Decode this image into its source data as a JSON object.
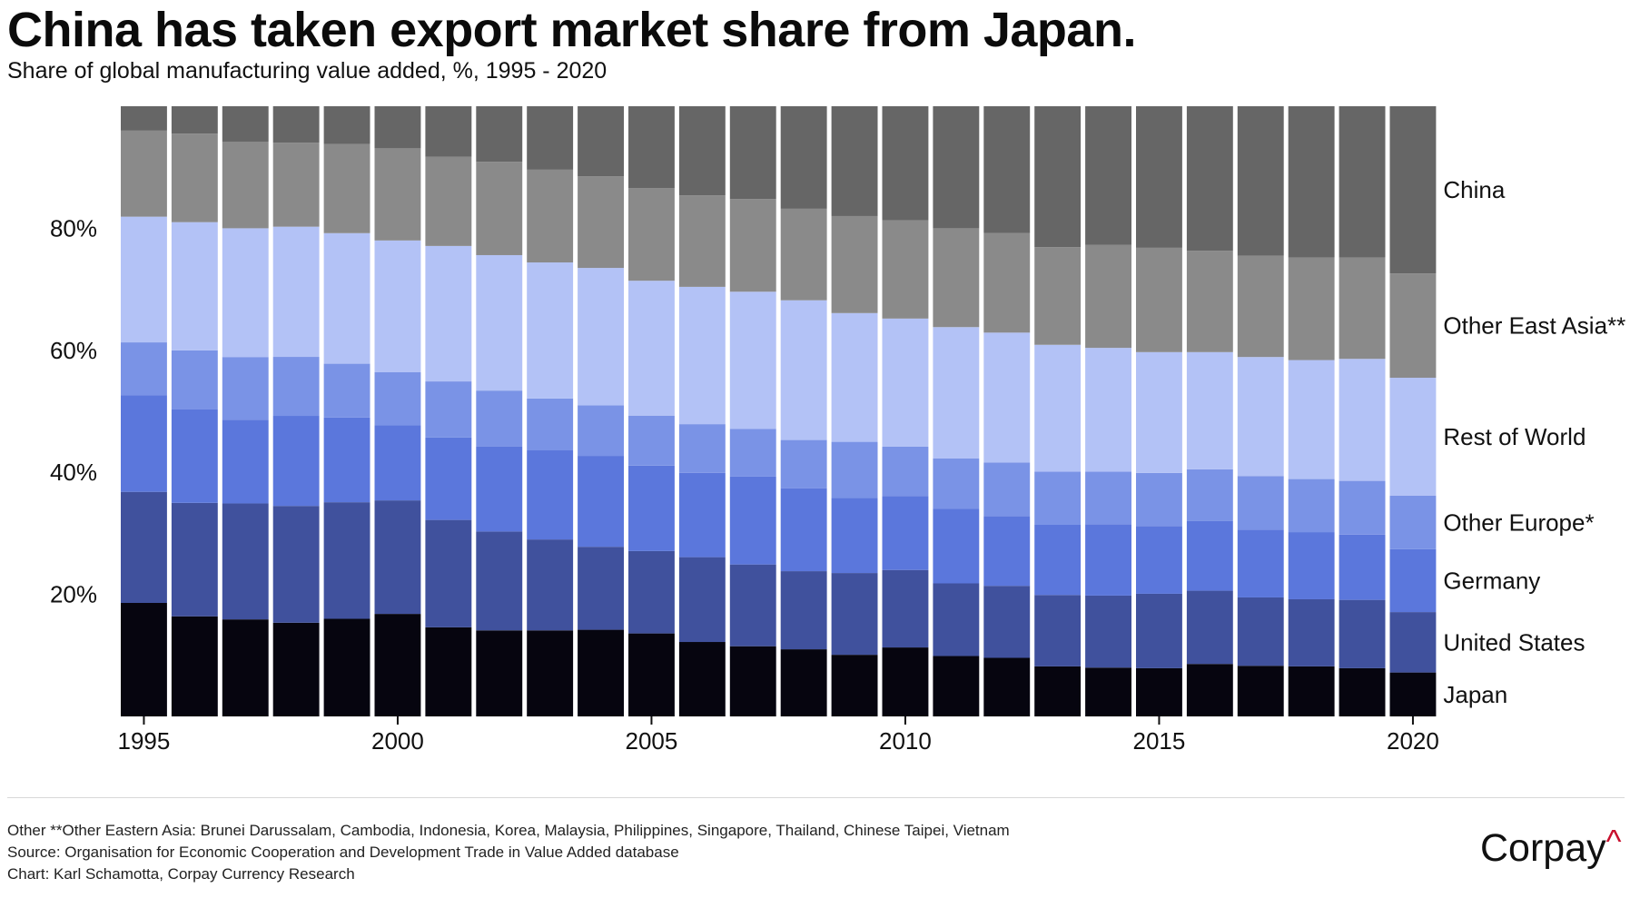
{
  "chart_data": {
    "type": "bar",
    "stacked": true,
    "title": "China has taken export market share from Japan.",
    "subtitle": "Share of global manufacturing value added, %, 1995 - 2020",
    "categories": [
      1995,
      1996,
      1997,
      1998,
      1999,
      2000,
      2001,
      2002,
      2003,
      2004,
      2005,
      2006,
      2007,
      2008,
      2009,
      2010,
      2011,
      2012,
      2013,
      2014,
      2015,
      2016,
      2017,
      2018,
      2019,
      2020
    ],
    "x_ticks": [
      "1995",
      "2000",
      "2005",
      "2010",
      "2015",
      "2020"
    ],
    "y_ticks": [
      {
        "value": 20,
        "label": "20%"
      },
      {
        "value": 40,
        "label": "40%"
      },
      {
        "value": 60,
        "label": "60%"
      },
      {
        "value": 80,
        "label": "80%"
      }
    ],
    "ylim": [
      0,
      100
    ],
    "legend_placement": "right",
    "series": [
      {
        "name": "Japan",
        "color": "#06050f",
        "values": [
          18.6,
          16.4,
          15.9,
          15.4,
          16.0,
          16.8,
          14.6,
          14.1,
          14.1,
          14.2,
          13.6,
          12.2,
          11.5,
          11.0,
          10.1,
          11.3,
          9.9,
          9.6,
          8.2,
          8.0,
          7.9,
          8.6,
          8.3,
          8.2,
          7.9,
          7.2
        ]
      },
      {
        "name": "United States",
        "color": "#40519d",
        "values": [
          18.2,
          18.6,
          19.0,
          19.2,
          19.1,
          18.6,
          17.6,
          16.2,
          14.9,
          13.6,
          13.5,
          13.9,
          13.4,
          12.8,
          13.4,
          12.7,
          11.9,
          11.8,
          11.7,
          11.8,
          12.2,
          12.0,
          11.2,
          11.0,
          11.2,
          9.9
        ]
      },
      {
        "name": "Germany",
        "color": "#5b77dc",
        "values": [
          15.8,
          15.3,
          13.7,
          14.8,
          13.9,
          12.3,
          13.5,
          13.9,
          14.6,
          14.9,
          14.0,
          13.8,
          14.4,
          13.6,
          12.3,
          12.1,
          12.2,
          11.4,
          11.5,
          11.7,
          11.1,
          11.4,
          11.1,
          11.0,
          10.7,
          10.3
        ]
      },
      {
        "name": "Other Europe*",
        "color": "#7a93e6",
        "values": [
          8.7,
          9.7,
          10.3,
          9.7,
          8.8,
          8.7,
          9.2,
          9.2,
          8.5,
          8.3,
          8.2,
          8.0,
          7.8,
          7.9,
          9.2,
          8.1,
          8.3,
          8.8,
          8.7,
          8.6,
          8.7,
          8.5,
          8.8,
          8.7,
          8.8,
          8.8
        ]
      },
      {
        "name": "Rest of World",
        "color": "#b3c2f6",
        "values": [
          20.6,
          21.0,
          21.1,
          21.4,
          21.4,
          21.6,
          22.2,
          22.2,
          22.3,
          22.5,
          22.1,
          22.5,
          22.5,
          22.9,
          21.1,
          21.0,
          21.5,
          21.3,
          20.8,
          20.3,
          19.8,
          19.2,
          19.5,
          19.5,
          20.0,
          19.3
        ]
      },
      {
        "name": "Other East Asia**",
        "color": "#8a8a8a",
        "values": [
          14.1,
          14.5,
          14.2,
          13.8,
          14.6,
          15.1,
          14.6,
          15.3,
          15.2,
          15.0,
          15.2,
          15.0,
          15.2,
          15.0,
          15.9,
          16.1,
          16.2,
          16.3,
          16.0,
          16.9,
          17.1,
          16.6,
          16.6,
          16.8,
          16.6,
          17.1
        ]
      },
      {
        "name": "China",
        "color": "#666666",
        "values": [
          4.0,
          4.5,
          5.8,
          6.0,
          6.2,
          6.9,
          8.3,
          9.1,
          10.4,
          11.5,
          13.4,
          14.6,
          15.2,
          16.8,
          18.0,
          18.7,
          20.0,
          20.8,
          23.1,
          22.7,
          23.2,
          23.7,
          24.5,
          24.8,
          24.8,
          27.4
        ]
      }
    ],
    "footnotes": [
      "Other **Other Eastern Asia: Brunei Darussalam, Cambodia, Indonesia, Korea, Malaysia, Philippines, Singapore, Thailand, Chinese Taipei, Vietnam",
      "Source: Organisation for Economic Cooperation and Development Trade in Value Added database",
      "Chart: Karl Schamotta, Corpay Currency Research"
    ]
  },
  "brand": {
    "name": "Corpay",
    "mark": "^",
    "mark_color": "#c8102e"
  }
}
